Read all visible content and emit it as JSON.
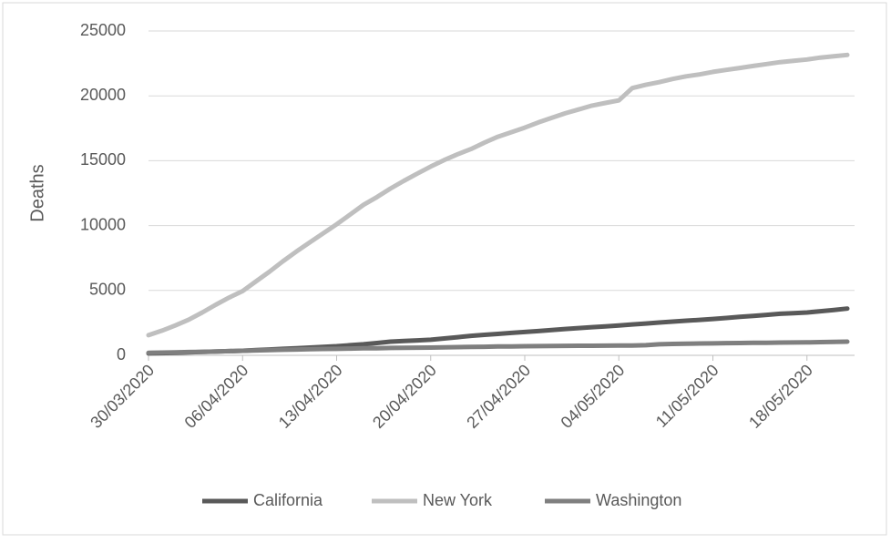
{
  "chart_data": {
    "type": "line",
    "y_label": "Deaths",
    "categories": [
      "30/03/2020",
      null,
      null,
      null,
      null,
      null,
      null,
      "06/04/2020",
      null,
      null,
      null,
      null,
      null,
      null,
      "13/04/2020",
      null,
      null,
      null,
      null,
      null,
      null,
      "20/04/2020",
      null,
      null,
      null,
      null,
      null,
      null,
      "27/04/2020",
      null,
      null,
      null,
      null,
      null,
      null,
      "04/05/2020",
      null,
      null,
      null,
      null,
      null,
      null,
      "11/05/2020",
      null,
      null,
      null,
      null,
      null,
      null,
      "18/05/2020",
      null,
      null,
      null
    ],
    "series": [
      {
        "name": "California",
        "color": "#595959",
        "values": [
          150,
          170,
          200,
          230,
          260,
          290,
          320,
          350,
          400,
          450,
          500,
          550,
          600,
          650,
          700,
          780,
          850,
          950,
          1050,
          1100,
          1150,
          1200,
          1300,
          1400,
          1500,
          1580,
          1650,
          1730,
          1800,
          1870,
          1950,
          2030,
          2100,
          2170,
          2230,
          2300,
          2380,
          2450,
          2530,
          2600,
          2670,
          2730,
          2800,
          2880,
          2960,
          3040,
          3120,
          3200,
          3250,
          3300,
          3400,
          3500,
          3600
        ]
      },
      {
        "name": "New York",
        "color": "#bfbfbf",
        "values": [
          1550,
          1900,
          2300,
          2750,
          3300,
          3900,
          4450,
          4950,
          5700,
          6450,
          7250,
          8000,
          8700,
          9400,
          10100,
          10850,
          11600,
          12200,
          12850,
          13450,
          14000,
          14550,
          15050,
          15500,
          15900,
          16400,
          16850,
          17200,
          17550,
          17950,
          18300,
          18650,
          18950,
          19250,
          19450,
          19650,
          20600,
          20850,
          21050,
          21300,
          21500,
          21650,
          21850,
          22000,
          22150,
          22300,
          22450,
          22600,
          22700,
          22800,
          22950,
          23050,
          23150
        ]
      },
      {
        "name": "Washington",
        "color": "#7f7f7f",
        "values": [
          200,
          210,
          230,
          250,
          270,
          300,
          320,
          350,
          380,
          410,
          430,
          450,
          470,
          490,
          500,
          520,
          540,
          550,
          570,
          580,
          590,
          600,
          610,
          630,
          650,
          660,
          680,
          690,
          700,
          710,
          720,
          730,
          735,
          740,
          745,
          750,
          760,
          780,
          850,
          880,
          900,
          910,
          920,
          940,
          950,
          960,
          970,
          980,
          990,
          1000,
          1020,
          1040,
          1050
        ]
      }
    ],
    "ylim": [
      0,
      25000
    ],
    "yticks": [
      0,
      5000,
      10000,
      15000,
      20000,
      25000
    ],
    "grid": true,
    "legend": "bottom"
  }
}
